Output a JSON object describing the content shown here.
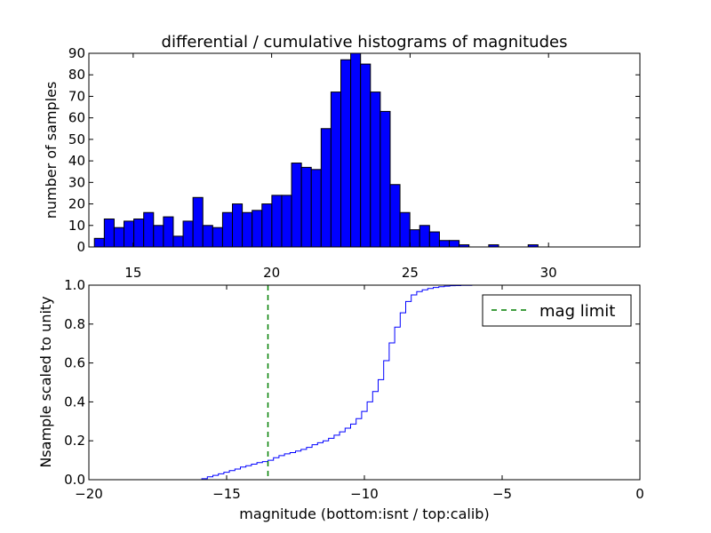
{
  "chart_data": [
    {
      "type": "bar",
      "title": "differential / cumulative histograms of magnitudes",
      "xlabel": "",
      "ylabel": "number of samples",
      "xlim": [
        13.4,
        33.3
      ],
      "ylim": [
        0,
        90
      ],
      "xticks": [
        15,
        20,
        25,
        30
      ],
      "yticks": [
        0,
        10,
        20,
        30,
        40,
        50,
        60,
        70,
        80,
        90
      ],
      "x_axis_position": "top-of-lower-panel",
      "bin_width": 0.356,
      "bin_start": 13.6,
      "values": [
        4,
        13,
        9,
        12,
        13,
        16,
        10,
        14,
        5,
        12,
        23,
        10,
        9,
        16,
        20,
        16,
        17,
        20,
        24,
        24,
        39,
        37,
        36,
        55,
        72,
        87,
        90,
        85,
        72,
        63,
        29,
        16,
        8,
        10,
        7,
        3,
        3,
        1,
        0,
        0,
        1,
        0,
        0,
        0,
        1,
        0,
        0,
        0,
        0,
        0,
        0
      ],
      "color": "#0000ff"
    },
    {
      "type": "line",
      "title": "",
      "xlabel": "magnitude (bottom:isnt / top:calib)",
      "ylabel": "Nsample scaled to unity",
      "xlim": [
        -20,
        0
      ],
      "ylim": [
        0,
        1.0
      ],
      "xticks": [
        -20,
        -15,
        -10,
        -5,
        0
      ],
      "yticks": [
        0.0,
        0.2,
        0.4,
        0.6,
        0.8,
        1.0
      ],
      "xtick_labels": [
        "−20",
        "−15",
        "−10",
        "−5",
        "0"
      ],
      "ytick_labels": [
        "0.0",
        "0.2",
        "0.4",
        "0.6",
        "0.8",
        "1.0"
      ],
      "step": true,
      "series": [
        {
          "name": "",
          "color": "#0000ff",
          "style": "step",
          "x": [
            -20,
            -15.9,
            -15.7,
            -15.5,
            -15.3,
            -15.1,
            -14.9,
            -14.7,
            -14.5,
            -14.3,
            -14.1,
            -13.9,
            -13.7,
            -13.5,
            -13.3,
            -13.1,
            -12.9,
            -12.7,
            -12.5,
            -12.3,
            -12.1,
            -11.9,
            -11.7,
            -11.5,
            -11.3,
            -11.1,
            -10.9,
            -10.7,
            -10.5,
            -10.3,
            -10.1,
            -9.9,
            -9.7,
            -9.5,
            -9.3,
            -9.1,
            -8.9,
            -8.7,
            -8.5,
            -8.3,
            -8.1,
            -7.9,
            -7.7,
            -7.5,
            -7.3,
            -7.1,
            -6.9,
            -6.7,
            -6.5,
            -6.3,
            -6.1,
            -5.9,
            0
          ],
          "y": [
            0,
            0.005,
            0.015,
            0.022,
            0.03,
            0.038,
            0.047,
            0.055,
            0.065,
            0.072,
            0.08,
            0.088,
            0.093,
            0.1,
            0.113,
            0.124,
            0.133,
            0.139,
            0.147,
            0.156,
            0.166,
            0.18,
            0.19,
            0.2,
            0.213,
            0.229,
            0.246,
            0.265,
            0.286,
            0.314,
            0.351,
            0.4,
            0.453,
            0.514,
            0.612,
            0.703,
            0.784,
            0.858,
            0.916,
            0.95,
            0.967,
            0.976,
            0.983,
            0.988,
            0.992,
            0.995,
            0.997,
            0.998,
            0.999,
            0.999,
            1.0,
            1.0,
            1.0
          ]
        }
      ],
      "vline": {
        "x": -13.5,
        "label": "mag limit",
        "color": "#007f00",
        "style": "dashed"
      },
      "legend": {
        "placement": "top-right",
        "entries": [
          "mag limit"
        ]
      }
    }
  ]
}
